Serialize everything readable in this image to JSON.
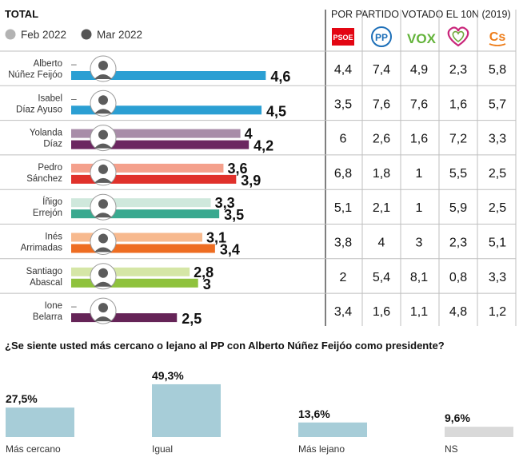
{
  "title": "TOTAL",
  "legend": [
    {
      "label": "Feb 2022",
      "color": "#b3b3b3"
    },
    {
      "label": "Mar 2022",
      "color": "#555555"
    }
  ],
  "table_header": "POR PARTIDO VOTADO EL 10N (2019)",
  "parties": [
    {
      "name": "PSOE",
      "logo": "psoe-logo"
    },
    {
      "name": "PP",
      "logo": "pp-logo"
    },
    {
      "name": "VOX",
      "logo": "vox-logo"
    },
    {
      "name": "Unidas Podemos",
      "logo": "podemos-heart-logo"
    },
    {
      "name": "Cs",
      "logo": "cs-logo"
    }
  ],
  "chart_data": [
    {
      "type": "bar",
      "title": "TOTAL",
      "series": [
        {
          "name": "Feb 2022",
          "values": [
            null,
            null,
            4,
            3.6,
            3.3,
            3.1,
            2.8,
            null
          ]
        },
        {
          "name": "Mar 2022",
          "values": [
            4.6,
            4.5,
            4.2,
            3.9,
            3.5,
            3.4,
            3,
            2.5
          ]
        }
      ],
      "leaders": [
        {
          "line1": "Alberto",
          "line2": "Núñez Feijóo",
          "feb_label": "–",
          "mar_label": "4,6",
          "feb_color": "",
          "mar_color": "#2b9fd3",
          "by_party": [
            "4,4",
            "7,4",
            "4,9",
            "2,3",
            "5,8"
          ]
        },
        {
          "line1": "Isabel",
          "line2": "Díaz Ayuso",
          "feb_label": "–",
          "mar_label": "4,5",
          "feb_color": "",
          "mar_color": "#2b9fd3",
          "by_party": [
            "3,5",
            "7,6",
            "7,6",
            "1,6",
            "5,7"
          ]
        },
        {
          "line1": "Yolanda",
          "line2": "Díaz",
          "feb_label": "4",
          "mar_label": "4,2",
          "feb_color": "#a88ca8",
          "mar_color": "#6b2660",
          "by_party": [
            "6",
            "2,6",
            "1,6",
            "7,2",
            "3,3"
          ]
        },
        {
          "line1": "Pedro",
          "line2": "Sánchez",
          "feb_label": "3,6",
          "mar_label": "3,9",
          "feb_color": "#f4a08c",
          "mar_color": "#e0312b",
          "by_party": [
            "6,8",
            "1,8",
            "1",
            "5,5",
            "2,5"
          ]
        },
        {
          "line1": "Íñigo",
          "line2": "Errejón",
          "feb_label": "3,3",
          "mar_label": "3,5",
          "feb_color": "#cfe8dc",
          "mar_color": "#3aa98f",
          "by_party": [
            "5,1",
            "2,1",
            "1",
            "5,9",
            "2,5"
          ]
        },
        {
          "line1": "Inés",
          "line2": "Arrimadas",
          "feb_label": "3,1",
          "mar_label": "3,4",
          "feb_color": "#f7b98e",
          "mar_color": "#ee6d22",
          "by_party": [
            "3,8",
            "4",
            "3",
            "2,3",
            "5,1"
          ]
        },
        {
          "line1": "Santiago",
          "line2": "Abascal",
          "feb_label": "2,8",
          "mar_label": "3",
          "feb_color": "#d5e6a6",
          "mar_color": "#8fc23d",
          "by_party": [
            "2",
            "5,4",
            "8,1",
            "0,8",
            "3,3"
          ]
        },
        {
          "line1": "Ione",
          "line2": "Belarra",
          "feb_label": "–",
          "mar_label": "2,5",
          "feb_color": "",
          "mar_color": "#652457",
          "by_party": [
            "3,4",
            "1,6",
            "1,1",
            "4,8",
            "1,2"
          ]
        }
      ],
      "xlim": [
        0,
        5
      ]
    },
    {
      "type": "bar",
      "title": "¿Se siente usted más cercano o lejano al PP con Alberto Núñez Feijóo como presidente?",
      "categories": [
        "Más cercano",
        "Igual",
        "Más lejano",
        "NS"
      ],
      "values": [
        27.5,
        49.3,
        13.6,
        9.6
      ],
      "labels": [
        "27,5%",
        "49,3%",
        "13,6%",
        "9,6%"
      ],
      "colors": [
        "#a7cdd8",
        "#a7cdd8",
        "#a7cdd8",
        "#d9d9d9"
      ],
      "unit": "%"
    }
  ]
}
